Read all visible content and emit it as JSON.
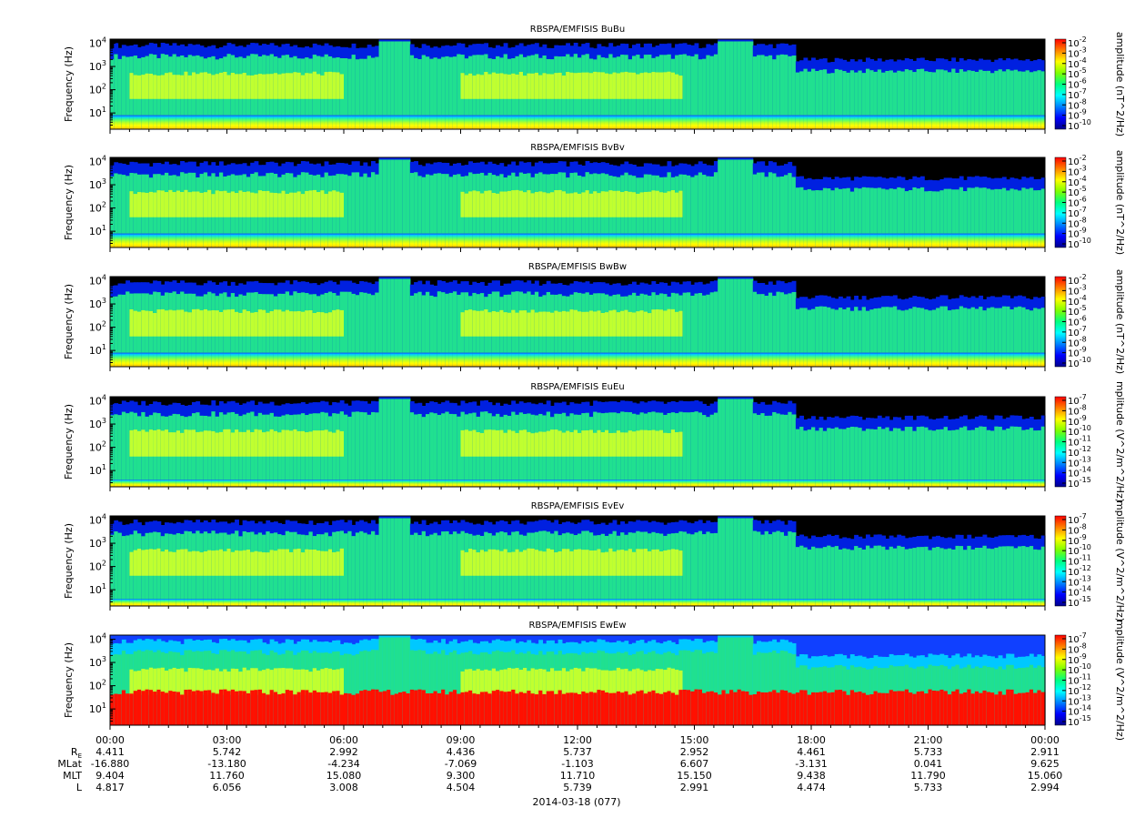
{
  "chart_data": {
    "type": "heatmap",
    "date_label": "2014-03-18 (077)",
    "x_axis": {
      "range": [
        "00:00",
        "24:00"
      ],
      "tick_labels": [
        "00:00",
        "03:00",
        "06:00",
        "09:00",
        "12:00",
        "15:00",
        "18:00",
        "21:00",
        "00:00"
      ],
      "tick_hours": [
        0,
        3,
        6,
        9,
        12,
        15,
        18,
        21,
        24
      ]
    },
    "ephemeris": {
      "rows": [
        {
          "label": "R",
          "sub": "E",
          "values": [
            "4.411",
            "5.742",
            "2.992",
            "4.436",
            "5.737",
            "2.952",
            "4.461",
            "5.733",
            "2.911"
          ]
        },
        {
          "label": "MLat",
          "values": [
            "-16.880",
            "-13.180",
            "-4.234",
            "-7.069",
            "-1.103",
            "6.607",
            "-3.131",
            "0.041",
            "9.625"
          ]
        },
        {
          "label": "MLT",
          "values": [
            "9.404",
            "11.760",
            "15.080",
            "9.300",
            "11.710",
            "15.150",
            "9.438",
            "11.790",
            "15.060"
          ]
        },
        {
          "label": "L",
          "values": [
            "4.817",
            "6.056",
            "3.008",
            "4.504",
            "5.739",
            "2.991",
            "4.474",
            "5.733",
            "2.994"
          ]
        }
      ]
    },
    "panels": [
      {
        "title": "RBSPA/EMFISIS  BuBu",
        "ylabel": "Frequency (Hz)",
        "ylim": [
          2,
          15000
        ],
        "yscale": "log",
        "y_ticks": [
          {
            "base": "10",
            "exp": "1"
          },
          {
            "base": "10",
            "exp": "2"
          },
          {
            "base": "10",
            "exp": "3"
          },
          {
            "base": "10",
            "exp": "4"
          }
        ],
        "zlabel": "amplitude (nT^2/Hz)",
        "zscale": "log",
        "zlim_exp": [
          -10,
          -2
        ],
        "z_ticks": [
          "-2",
          "-3",
          "-4",
          "-5",
          "-6",
          "-7",
          "-8",
          "-9",
          "-10"
        ],
        "kind": "B"
      },
      {
        "title": "RBSPA/EMFISIS  BvBv",
        "ylabel": "Frequency (Hz)",
        "ylim": [
          2,
          15000
        ],
        "yscale": "log",
        "y_ticks": [
          {
            "base": "10",
            "exp": "1"
          },
          {
            "base": "10",
            "exp": "2"
          },
          {
            "base": "10",
            "exp": "3"
          },
          {
            "base": "10",
            "exp": "4"
          }
        ],
        "zlabel": "amplitude (nT^2/Hz)",
        "zscale": "log",
        "zlim_exp": [
          -10,
          -2
        ],
        "z_ticks": [
          "-2",
          "-3",
          "-4",
          "-5",
          "-6",
          "-7",
          "-8",
          "-9",
          "-10"
        ],
        "kind": "B"
      },
      {
        "title": "RBSPA/EMFISIS  BwBw",
        "ylabel": "Frequency (Hz)",
        "ylim": [
          2,
          15000
        ],
        "yscale": "log",
        "y_ticks": [
          {
            "base": "10",
            "exp": "1"
          },
          {
            "base": "10",
            "exp": "2"
          },
          {
            "base": "10",
            "exp": "3"
          },
          {
            "base": "10",
            "exp": "4"
          }
        ],
        "zlabel": "amplitude (nT^2/Hz)",
        "zscale": "log",
        "zlim_exp": [
          -10,
          -2
        ],
        "z_ticks": [
          "-2",
          "-3",
          "-4",
          "-5",
          "-6",
          "-7",
          "-8",
          "-9",
          "-10"
        ],
        "kind": "B"
      },
      {
        "title": "RBSPA/EMFISIS  EuEu",
        "ylabel": "Frequency (Hz)",
        "ylim": [
          2,
          15000
        ],
        "yscale": "log",
        "y_ticks": [
          {
            "base": "10",
            "exp": "1"
          },
          {
            "base": "10",
            "exp": "2"
          },
          {
            "base": "10",
            "exp": "3"
          },
          {
            "base": "10",
            "exp": "4"
          }
        ],
        "zlabel": "mplitude (V^2/m^2/Hz)",
        "zscale": "log",
        "zlim_exp": [
          -15,
          -7
        ],
        "z_ticks": [
          "-7",
          "-8",
          "-9",
          "-10",
          "-11",
          "-12",
          "-13",
          "-14",
          "-15"
        ],
        "kind": "E"
      },
      {
        "title": "RBSPA/EMFISIS  EvEv",
        "ylabel": "Frequency (Hz)",
        "ylim": [
          2,
          15000
        ],
        "yscale": "log",
        "y_ticks": [
          {
            "base": "10",
            "exp": "1"
          },
          {
            "base": "10",
            "exp": "2"
          },
          {
            "base": "10",
            "exp": "3"
          },
          {
            "base": "10",
            "exp": "4"
          }
        ],
        "zlabel": "mplitude (V^2/m^2/Hz)",
        "zscale": "log",
        "zlim_exp": [
          -15,
          -7
        ],
        "z_ticks": [
          "-7",
          "-8",
          "-9",
          "-10",
          "-11",
          "-12",
          "-13",
          "-14",
          "-15"
        ],
        "kind": "E"
      },
      {
        "title": "RBSPA/EMFISIS  EwEw",
        "ylabel": "Frequency (Hz)",
        "ylim": [
          2,
          15000
        ],
        "yscale": "log",
        "y_ticks": [
          {
            "base": "10",
            "exp": "1"
          },
          {
            "base": "10",
            "exp": "2"
          },
          {
            "base": "10",
            "exp": "3"
          },
          {
            "base": "10",
            "exp": "4"
          }
        ],
        "zlabel": "mplitude (V^2/m^2/Hz)",
        "zscale": "log",
        "zlim_exp": [
          -15,
          -7
        ],
        "z_ticks": [
          "-7",
          "-8",
          "-9",
          "-10",
          "-11",
          "-12",
          "-13",
          "-14",
          "-15"
        ],
        "kind": "Ew"
      }
    ],
    "colorscale": [
      "#00008c",
      "#0000ff",
      "#0080ff",
      "#00ffff",
      "#00ff80",
      "#80ff00",
      "#ffff00",
      "#ff8000",
      "#ff0000"
    ]
  }
}
